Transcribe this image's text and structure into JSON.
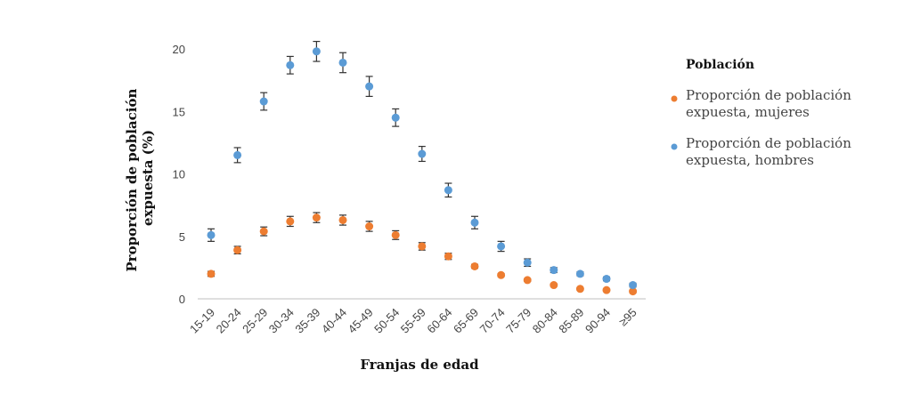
{
  "chart_data": {
    "type": "scatter",
    "xlabel": "Franjas de edad",
    "ylabel_line1": "Proporción de población",
    "ylabel_line2": "expuesta (%)",
    "ylim": [
      0,
      21
    ],
    "yticks": [
      "0",
      "5",
      "10",
      "15",
      "20"
    ],
    "grid": false,
    "categories": [
      "15-19",
      "20-24",
      "25-29",
      "30-34",
      "35-39",
      "40-44",
      "45-49",
      "50-54",
      "55-59",
      "60-64",
      "65-69",
      "70-74",
      "75-79",
      "80-84",
      "85-89",
      "90-94",
      "≥95"
    ],
    "legend": {
      "title": "Población",
      "position": "right"
    },
    "series": [
      {
        "name_line1": "Proporción de población",
        "name_line2": "expuesta, mujeres",
        "color": "#ED7D31",
        "values": [
          2.0,
          3.9,
          5.4,
          6.2,
          6.5,
          6.3,
          5.8,
          5.1,
          4.2,
          3.4,
          2.6,
          1.9,
          1.5,
          1.1,
          0.8,
          0.7,
          0.6
        ],
        "err": [
          0.2,
          0.3,
          0.35,
          0.4,
          0.4,
          0.4,
          0.4,
          0.35,
          0.3,
          0.25,
          0.15,
          0.12,
          0.1,
          0.1,
          0.08,
          0.08,
          0.1
        ]
      },
      {
        "name_line1": "Proporción de población",
        "name_line2": "expuesta, hombres",
        "color": "#5B9BD5",
        "values": [
          5.1,
          11.5,
          15.8,
          18.7,
          19.8,
          18.9,
          17.0,
          14.5,
          11.6,
          8.7,
          6.1,
          4.2,
          2.9,
          2.3,
          2.0,
          1.6,
          1.1
        ],
        "err": [
          0.5,
          0.6,
          0.7,
          0.7,
          0.8,
          0.8,
          0.8,
          0.7,
          0.6,
          0.55,
          0.5,
          0.4,
          0.3,
          0.2,
          0.15,
          0.15,
          0.15
        ]
      }
    ]
  }
}
